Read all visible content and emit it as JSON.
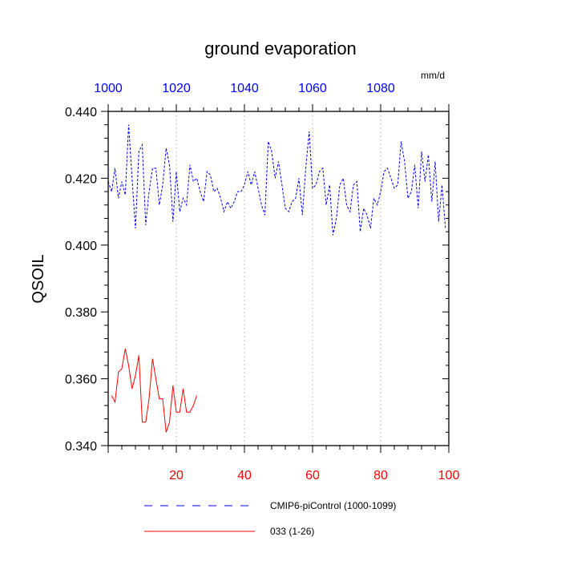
{
  "chart_data": {
    "type": "line",
    "title": "ground evaporation",
    "units": "mm/d",
    "ylabel": "QSOIL",
    "xlabel": "",
    "xlim_bottom": [
      0,
      100
    ],
    "xlim_top": [
      1000,
      1100
    ],
    "ylim": [
      0.34,
      0.44
    ],
    "x_ticks_bottom": [
      20,
      40,
      60,
      80,
      100
    ],
    "x_tick_labels_bottom": [
      "20",
      "40",
      "60",
      "80",
      "100"
    ],
    "x_ticks_top": [
      1000,
      1020,
      1040,
      1060,
      1080
    ],
    "x_tick_labels_top": [
      "1000",
      "1020",
      "1040",
      "1060",
      "1080"
    ],
    "y_ticks": [
      0.34,
      0.36,
      0.38,
      0.4,
      0.42,
      0.44
    ],
    "y_tick_labels": [
      "0.340",
      "0.360",
      "0.380",
      "0.400",
      "0.420",
      "0.440"
    ],
    "grid": "vertical dotted gridlines at bottom x ticks",
    "legend_position": "bottom-center, below plot",
    "series": [
      {
        "name": "CMIP6-piControl (1000-1099)",
        "axis": "top",
        "color": "#0000ff",
        "style": "dashed",
        "x": [
          1000,
          1001,
          1002,
          1003,
          1004,
          1005,
          1006,
          1007,
          1008,
          1009,
          1010,
          1011,
          1012,
          1013,
          1014,
          1015,
          1016,
          1017,
          1018,
          1019,
          1020,
          1021,
          1022,
          1023,
          1024,
          1025,
          1026,
          1027,
          1028,
          1029,
          1030,
          1031,
          1032,
          1033,
          1034,
          1035,
          1036,
          1037,
          1038,
          1039,
          1040,
          1041,
          1042,
          1043,
          1044,
          1045,
          1046,
          1047,
          1048,
          1049,
          1050,
          1051,
          1052,
          1053,
          1054,
          1055,
          1056,
          1057,
          1058,
          1059,
          1060,
          1061,
          1062,
          1063,
          1064,
          1065,
          1066,
          1067,
          1068,
          1069,
          1070,
          1071,
          1072,
          1073,
          1074,
          1075,
          1076,
          1077,
          1078,
          1079,
          1080,
          1081,
          1082,
          1083,
          1084,
          1085,
          1086,
          1087,
          1088,
          1089,
          1090,
          1091,
          1092,
          1093,
          1094,
          1095,
          1096,
          1097,
          1098,
          1099
        ],
        "values": [
          0.419,
          0.416,
          0.423,
          0.414,
          0.419,
          0.415,
          0.436,
          0.42,
          0.405,
          0.428,
          0.43,
          0.406,
          0.416,
          0.423,
          0.423,
          0.412,
          0.418,
          0.429,
          0.424,
          0.407,
          0.422,
          0.41,
          0.414,
          0.412,
          0.424,
          0.419,
          0.42,
          0.416,
          0.413,
          0.422,
          0.421,
          0.416,
          0.417,
          0.414,
          0.41,
          0.413,
          0.411,
          0.413,
          0.416,
          0.416,
          0.418,
          0.422,
          0.418,
          0.422,
          0.417,
          0.412,
          0.409,
          0.431,
          0.428,
          0.42,
          0.425,
          0.418,
          0.411,
          0.41,
          0.413,
          0.414,
          0.42,
          0.409,
          0.423,
          0.434,
          0.417,
          0.418,
          0.422,
          0.423,
          0.412,
          0.418,
          0.403,
          0.408,
          0.418,
          0.42,
          0.412,
          0.41,
          0.418,
          0.419,
          0.404,
          0.411,
          0.409,
          0.405,
          0.414,
          0.412,
          0.416,
          0.422,
          0.423,
          0.42,
          0.417,
          0.418,
          0.431,
          0.425,
          0.414,
          0.416,
          0.424,
          0.411,
          0.428,
          0.419,
          0.427,
          0.413,
          0.425,
          0.407,
          0.418,
          0.405
        ]
      },
      {
        "name": "033 (1-26)",
        "axis": "bottom",
        "color": "#ff0000",
        "style": "solid",
        "x": [
          1,
          2,
          3,
          4,
          5,
          6,
          7,
          8,
          9,
          10,
          11,
          12,
          13,
          14,
          15,
          16,
          17,
          18,
          19,
          20,
          21,
          22,
          23,
          24,
          25,
          26
        ],
        "values": [
          0.355,
          0.353,
          0.362,
          0.363,
          0.369,
          0.364,
          0.357,
          0.361,
          0.367,
          0.347,
          0.347,
          0.354,
          0.366,
          0.36,
          0.354,
          0.354,
          0.344,
          0.347,
          0.358,
          0.35,
          0.35,
          0.357,
          0.35,
          0.35,
          0.352,
          0.355
        ]
      }
    ]
  }
}
